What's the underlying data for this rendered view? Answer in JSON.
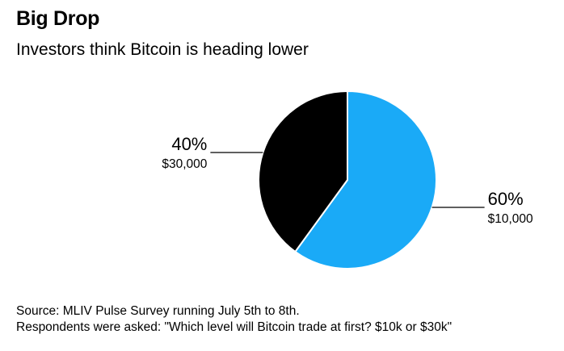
{
  "chart_data": {
    "type": "pie",
    "title": "Big Drop",
    "subtitle": "Investors think Bitcoin is heading lower",
    "slices": [
      {
        "label": "$10,000",
        "percent_label": "60%",
        "value": 60,
        "color": "#1aaaf7"
      },
      {
        "label": "$30,000",
        "percent_label": "40%",
        "value": 40,
        "color": "#000000"
      }
    ]
  },
  "footer": {
    "source": "Source: MLIV Pulse Survey running July 5th to 8th.",
    "note": "Respondents were asked: \"Which level will Bitcoin trade at first? $10k or $30k\""
  }
}
